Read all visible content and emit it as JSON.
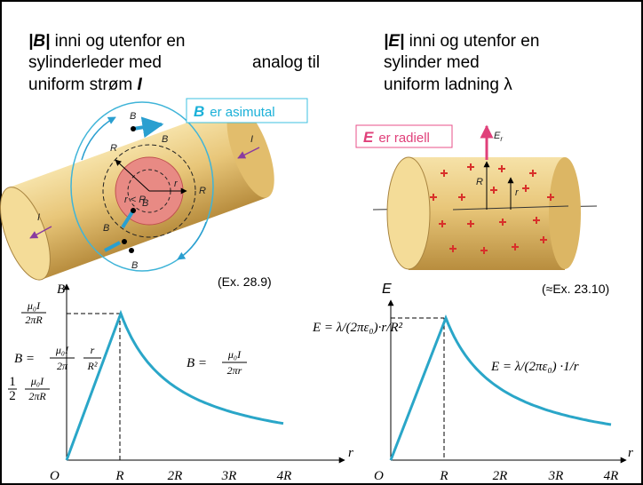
{
  "left_heading": {
    "symbol": "|B|",
    "line1": " inni og utenfor en",
    "line2": "sylinderleder med",
    "line3": "uniform strøm ",
    "current": "I"
  },
  "analog": "analog til",
  "right_heading": {
    "symbol": "|E|",
    "line1": " inni og utenfor en",
    "line2": "sylinder med",
    "line3": "uniform ladning λ"
  },
  "left_figure": {
    "badge_symbol": "B",
    "badge_text": "er asimutal",
    "labels": {
      "b_top": "B",
      "b_side": "B",
      "b_mid": "B",
      "b_bottom": "B",
      "b_below": "B",
      "i_right": "I",
      "i_left": "I",
      "r_big": "R",
      "r_small": "r < R",
      "r_out": "r",
      "r_end": "R"
    }
  },
  "right_figure": {
    "badge_symbol": "E",
    "badge_text": "er radiell",
    "labels": {
      "e": "E",
      "e_sub": "r",
      "r_big": "R",
      "r_small": "r"
    }
  },
  "left_graph": {
    "reference": "(Ex. 28.9)",
    "y_axis": "B",
    "x_axis": "r",
    "origin": "O",
    "x_ticks": [
      "R",
      "2R",
      "3R",
      "4R"
    ],
    "peak": {
      "num": "μ₀I",
      "den": "2πR"
    },
    "half": {
      "factor_num": "1",
      "factor_den": "2",
      "num": "μ₀I",
      "den": "2πR"
    },
    "inside": {
      "lhs": "B =",
      "num": "μ₀I",
      "den": "2π",
      "rnum": "r",
      "rden": "R²"
    },
    "outside": {
      "lhs": "B =",
      "num": "μ₀I",
      "den": "2πr"
    }
  },
  "right_graph": {
    "reference": "(≈Ex. 23.10)",
    "y_axis": "E",
    "x_axis": "r",
    "origin": "O",
    "x_ticks": [
      "R",
      "2R",
      "3R",
      "4R"
    ],
    "inside": "E = λ/(2πε₀)·r/R²",
    "outside": "E = λ/(2πε₀) ·1/r"
  }
}
